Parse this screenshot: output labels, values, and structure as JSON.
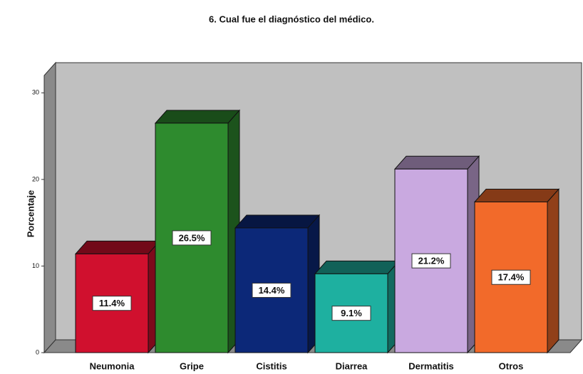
{
  "chart_data": {
    "type": "bar3d",
    "title": "6. Cual fue el diagnóstico del médico.",
    "y_label": "Porcentaje",
    "categories": [
      "Neumonia",
      "Gripe",
      "Cistitis",
      "Diarrea",
      "Dermatitis",
      "Otros"
    ],
    "values": [
      11.4,
      26.5,
      14.4,
      9.1,
      21.2,
      17.4
    ],
    "value_labels": [
      "11.4%",
      "26.5%",
      "14.4%",
      "9.1%",
      "21.2%",
      "17.4%"
    ],
    "colors": [
      "#d0102e",
      "#2e8b2e",
      "#0c2878",
      "#1eb0a0",
      "#c9a9e0",
      "#f26a2a"
    ],
    "ylim": [
      0,
      32
    ],
    "yticks": [
      0,
      10,
      20,
      30
    ],
    "grid": false
  }
}
